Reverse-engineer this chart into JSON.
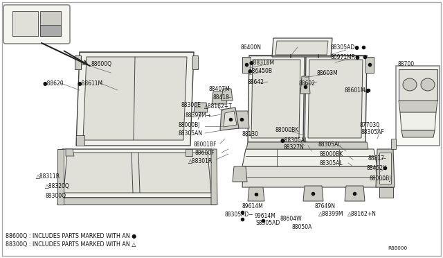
{
  "bg": "#ffffff",
  "line_color": "#444444",
  "text_color": "#111111",
  "light_fill": "#f0f0ea",
  "mid_fill": "#e0e0d8",
  "dark_fill": "#ccccc4",
  "footnote1": "88600Q : INCLUDES PARTS MARKED WITH AN ●",
  "footnote2": "88300Q : INCLUDES PARTS MARKED WITH AN △",
  "ref": "R88000",
  "figsize": [
    6.4,
    3.72
  ],
  "dpi": 100
}
